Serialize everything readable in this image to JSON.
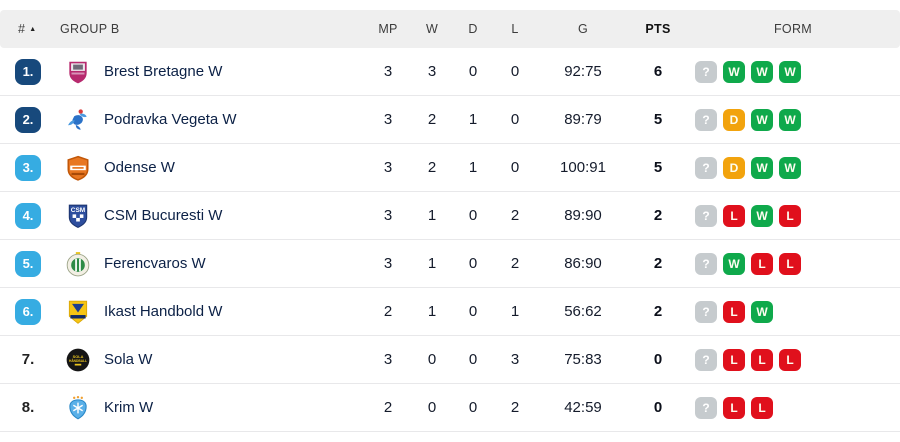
{
  "colors": {
    "navy": "#17497c",
    "blue": "#36ace2",
    "green": "#0fa94b",
    "orange": "#f2a30d",
    "red": "#e0101c",
    "gray": "#c6cbce",
    "header-bg": "#efefef",
    "name": "#0c2146",
    "num": "#141b2b",
    "divider": "#e8e8ea"
  },
  "header": {
    "rank": "#",
    "sort_icon": "▲",
    "group": "GROUP B",
    "mp": "MP",
    "w": "W",
    "d": "D",
    "l": "L",
    "g": "G",
    "pts": "PTS",
    "form": "FORM"
  },
  "rows": [
    {
      "rank": "1.",
      "rank_badge": "navy",
      "logo": "brest-bretagne",
      "team": "Brest Bretagne W",
      "mp": "3",
      "w": "3",
      "d": "0",
      "l": "0",
      "g": "92:75",
      "pts": "6",
      "form": [
        "?",
        "W",
        "W",
        "W"
      ]
    },
    {
      "rank": "2.",
      "rank_badge": "navy",
      "logo": "podravka-vegeta",
      "team": "Podravka Vegeta W",
      "mp": "3",
      "w": "2",
      "d": "1",
      "l": "0",
      "g": "89:79",
      "pts": "5",
      "form": [
        "?",
        "D",
        "W",
        "W"
      ]
    },
    {
      "rank": "3.",
      "rank_badge": "blue",
      "logo": "odense",
      "team": "Odense W",
      "mp": "3",
      "w": "2",
      "d": "1",
      "l": "0",
      "g": "100:91",
      "pts": "5",
      "form": [
        "?",
        "D",
        "W",
        "W"
      ]
    },
    {
      "rank": "4.",
      "rank_badge": "blue",
      "logo": "csm-bucuresti",
      "team": "CSM Bucuresti W",
      "mp": "3",
      "w": "1",
      "d": "0",
      "l": "2",
      "g": "89:90",
      "pts": "2",
      "form": [
        "?",
        "L",
        "W",
        "L"
      ]
    },
    {
      "rank": "5.",
      "rank_badge": "blue",
      "logo": "ferencvaros",
      "team": "Ferencvaros W",
      "mp": "3",
      "w": "1",
      "d": "0",
      "l": "2",
      "g": "86:90",
      "pts": "2",
      "form": [
        "?",
        "W",
        "L",
        "L"
      ]
    },
    {
      "rank": "6.",
      "rank_badge": "blue",
      "logo": "ikast-handbold",
      "team": "Ikast Handbold W",
      "mp": "2",
      "w": "1",
      "d": "0",
      "l": "1",
      "g": "56:62",
      "pts": "2",
      "form": [
        "?",
        "L",
        "W"
      ]
    },
    {
      "rank": "7.",
      "rank_badge": "none",
      "logo": "sola",
      "team": "Sola W",
      "mp": "3",
      "w": "0",
      "d": "0",
      "l": "3",
      "g": "75:83",
      "pts": "0",
      "form": [
        "?",
        "L",
        "L",
        "L"
      ]
    },
    {
      "rank": "8.",
      "rank_badge": "none",
      "logo": "krim",
      "team": "Krim W",
      "mp": "2",
      "w": "0",
      "d": "0",
      "l": "2",
      "g": "42:59",
      "pts": "0",
      "form": [
        "?",
        "L",
        "L"
      ]
    }
  ]
}
